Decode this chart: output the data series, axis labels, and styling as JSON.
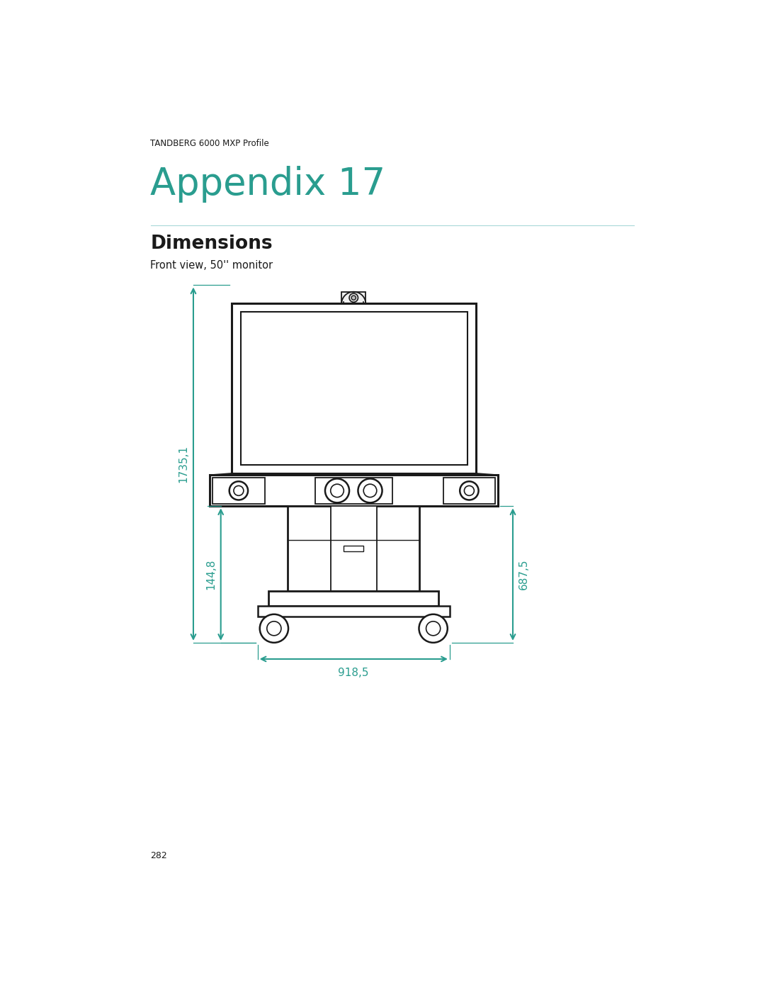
{
  "page_header": "TANDBERG 6000 MXP Profile",
  "appendix_title": "Appendix 17",
  "section_title": "Dimensions",
  "sub_title": "Front view, 50'' monitor",
  "page_number": "282",
  "teal_color": "#2a9d8f",
  "dim_color": "#2a9d8f",
  "line_color": "#1a1a1a",
  "bg_color": "#ffffff",
  "dim_1735": "1735,1",
  "dim_144": "144,8",
  "dim_687": "687,5",
  "dim_918": "918,5"
}
